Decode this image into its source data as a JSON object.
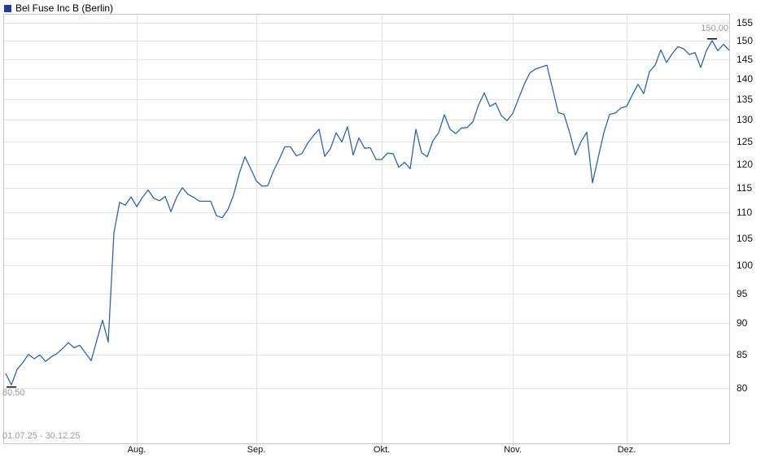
{
  "legend": {
    "label": "Bel Fuse Inc B (Berlin)",
    "color": "#203c9b"
  },
  "chart_data": {
    "type": "line",
    "title": "Bel Fuse Inc B (Berlin)",
    "date_range": "01.07.25 - 30.12.25",
    "grid": true,
    "x_axis": {
      "labels": [
        "Aug.",
        "Sep.",
        "Okt.",
        "Nov.",
        "Dez."
      ],
      "label_day_indices": [
        23,
        44,
        66,
        89,
        109
      ]
    },
    "y_axis": {
      "scale": "log",
      "domain": [
        72.44,
        157.45
      ],
      "ticks": [
        80,
        85,
        90,
        95,
        100,
        105,
        110,
        115,
        120,
        125,
        130,
        135,
        140,
        145,
        150,
        155
      ]
    },
    "annotations": {
      "high_label": "150,00",
      "high_value": 150.0,
      "low_label": "80,50",
      "low_value": 80.5
    },
    "series": [
      {
        "name": "Bel Fuse Inc B",
        "color": "#2e66a7",
        "values": [
          82.2,
          80.5,
          82.8,
          83.8,
          85.1,
          84.4,
          85.0,
          84.0,
          84.7,
          85.2,
          86.0,
          86.9,
          86.1,
          86.5,
          85.3,
          84.1,
          87.3,
          90.5,
          87.0,
          106.0,
          112.0,
          111.4,
          113.1,
          111.1,
          113.0,
          114.5,
          112.8,
          112.3,
          113.2,
          110.1,
          113.0,
          115.0,
          113.6,
          113.0,
          112.2,
          112.2,
          112.2,
          109.3,
          108.9,
          110.5,
          113.5,
          118.0,
          121.6,
          119.0,
          116.4,
          115.3,
          115.4,
          118.5,
          121.0,
          123.8,
          123.8,
          121.8,
          122.3,
          124.6,
          126.3,
          127.8,
          121.7,
          123.4,
          127.0,
          124.9,
          128.4,
          122.0,
          125.8,
          123.5,
          123.6,
          121.0,
          121.0,
          122.4,
          122.3,
          119.3,
          120.4,
          119.0,
          127.8,
          122.5,
          121.6,
          125.2,
          127.0,
          131.2,
          127.8,
          126.8,
          128.1,
          128.2,
          129.5,
          133.5,
          136.5,
          133.2,
          134.0,
          131.0,
          129.8,
          131.5,
          135.0,
          138.5,
          141.5,
          142.5,
          143.0,
          143.5,
          137.5,
          131.7,
          131.3,
          127.0,
          122.0,
          125.0,
          127.1,
          116.0,
          121.4,
          127.0,
          131.3,
          131.6,
          132.8,
          133.2,
          136.0,
          138.6,
          136.3,
          141.8,
          143.5,
          147.5,
          144.2,
          146.5,
          148.4,
          147.8,
          146.3,
          146.8,
          142.9,
          147.3,
          150.0,
          147.3,
          149.0,
          147.4
        ]
      }
    ]
  }
}
